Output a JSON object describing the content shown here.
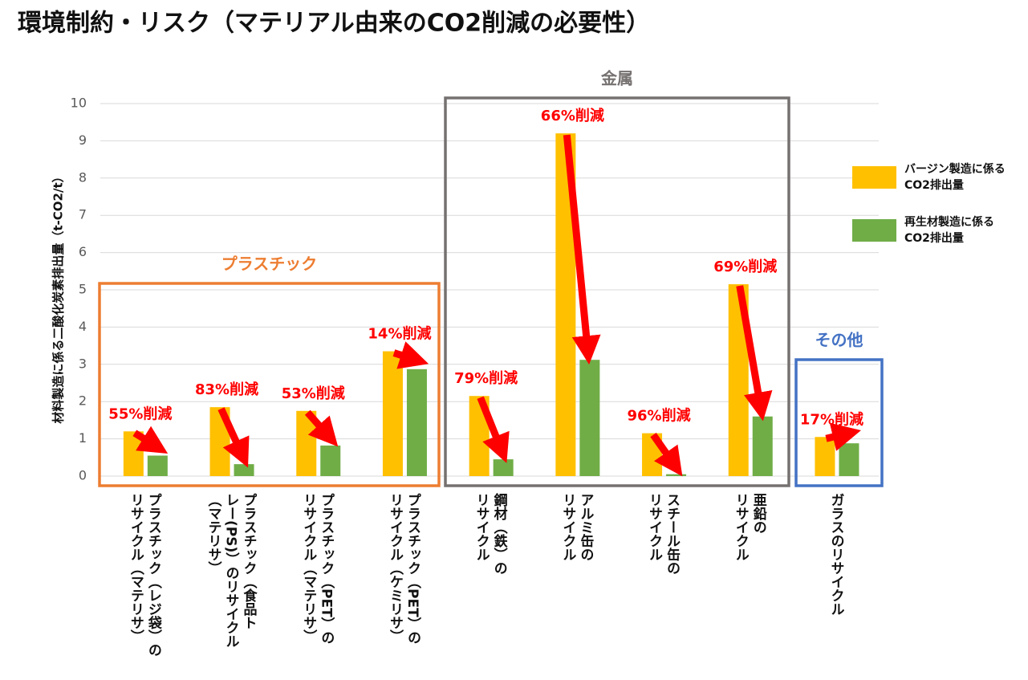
{
  "chart_data": {
    "type": "bar",
    "title": "環境制約・リスク（マテリアル由来のCO2削減の必要性）",
    "y_label": "材料製造に係る二酸化炭素排出量（t-CO2/t）",
    "categories": [
      "プラスチック（レジ袋）の\nリサイクル（マテリサ）",
      "プラスチック（食品ト\nレー(PS)）のリサイクル\n（マテリサ）",
      "プラスチック（PET）の\nリサイクル（マテリサ）",
      "プラスチック（PET）の\nリサイクル（ケミリサ）",
      "鋼材（鉄）の\nリサイクル",
      "アルミ缶の\nリサイクル",
      "スチール缶の\nリサイクル",
      "亜鉛の\nリサイクル",
      "ガラスのリサイクル"
    ],
    "series": [
      {
        "name": "バージン製造に係る\nCO2排出量",
        "color": "#FFC000",
        "values": [
          1.2,
          1.85,
          1.75,
          3.35,
          2.15,
          9.2,
          1.15,
          5.15,
          1.05
        ]
      },
      {
        "name": "再生材製造に係る\nCO2排出量",
        "color": "#70AD47",
        "values": [
          0.55,
          0.32,
          0.82,
          2.87,
          0.45,
          3.12,
          0.05,
          1.6,
          0.88
        ]
      }
    ],
    "annotations": [
      "55%削減",
      "83%削減",
      "53%削減",
      "14%削減",
      "79%削減",
      "66%削減",
      "96%削減",
      "69%削減",
      "17%削減"
    ],
    "groups": [
      {
        "label": "プラスチック",
        "color": "#ED7D31"
      },
      {
        "label": "金属",
        "color": "#767171"
      },
      {
        "label": "その他",
        "color": "#4472C4"
      }
    ],
    "ylim": [
      0,
      10
    ],
    "yticks": [
      0,
      1,
      2,
      3,
      4,
      5,
      6,
      7,
      8,
      9,
      10
    ],
    "grid": true
  }
}
